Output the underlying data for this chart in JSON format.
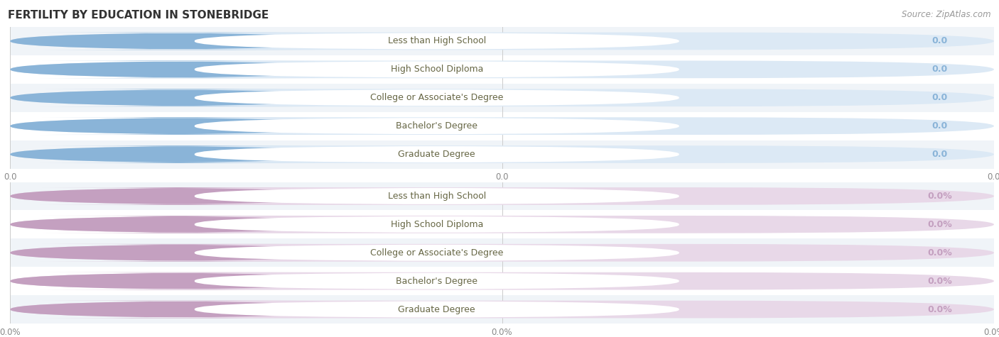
{
  "title": "FERTILITY BY EDUCATION IN STONEBRIDGE",
  "source": "Source: ZipAtlas.com",
  "top_group": {
    "categories": [
      "Less than High School",
      "High School Diploma",
      "College or Associate's Degree",
      "Bachelor's Degree",
      "Graduate Degree"
    ],
    "values": [
      0.0,
      0.0,
      0.0,
      0.0,
      0.0
    ],
    "bar_color": "#8ab4d8",
    "bar_bg_color": "#dce9f5",
    "label_bg_color": "#ffffff",
    "label_color": "#666644",
    "value_color": "#8ab4d8",
    "value_suffix": "",
    "xlim": [
      0,
      1
    ]
  },
  "bottom_group": {
    "categories": [
      "Less than High School",
      "High School Diploma",
      "College or Associate's Degree",
      "Bachelor's Degree",
      "Graduate Degree"
    ],
    "values": [
      0.0,
      0.0,
      0.0,
      0.0,
      0.0
    ],
    "bar_color": "#c4a0c0",
    "bar_bg_color": "#e8d8e8",
    "label_bg_color": "#ffffff",
    "label_color": "#666644",
    "value_color": "#c4a0c0",
    "value_suffix": "%",
    "xlim": [
      0,
      1
    ]
  },
  "fig_bg_color": "#ffffff",
  "row_bg_even": "#f0f4f8",
  "row_bg_odd": "#ffffff",
  "title_fontsize": 11,
  "source_fontsize": 8.5,
  "label_fontsize": 9,
  "value_fontsize": 9
}
